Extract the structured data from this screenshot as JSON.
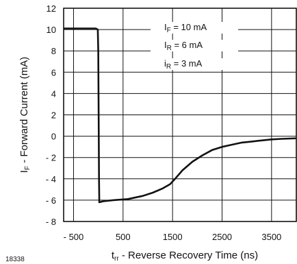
{
  "figure_id": "18338",
  "chart_data": {
    "type": "line",
    "xlabel": {
      "main": "t",
      "sub": "rr",
      "rest": " - Reverse Recovery Time (ns)"
    },
    "ylabel": {
      "main": "I",
      "sub": "F",
      "rest": " - Forward Current (mA)"
    },
    "xlim": [
      -700,
      4000
    ],
    "ylim": [
      -8,
      12
    ],
    "xticks": [
      -500,
      500,
      1500,
      2500,
      3500
    ],
    "xtick_labels": [
      "- 500",
      "500",
      "1500",
      "2500",
      "3500"
    ],
    "yticks": [
      12,
      10,
      8,
      6,
      4,
      2,
      0,
      -2,
      -4,
      -6,
      -8
    ],
    "ytick_labels": [
      "12",
      "10",
      "8",
      "6",
      "4",
      "2",
      "0",
      "- 2",
      "- 4",
      "- 6",
      "- 8"
    ],
    "grid": true,
    "legend": [
      {
        "main": "I",
        "sub": "F",
        "rest": " = 10 mA"
      },
      {
        "main": "I",
        "sub": "R",
        "rest": " =   6 mA"
      },
      {
        "main": "i",
        "sub": "R",
        "rest": " =   3 mA"
      }
    ],
    "series": [
      {
        "color": "#111111",
        "x": [
          -700,
          -50,
          -10,
          0,
          15,
          20,
          100,
          300,
          600,
          900,
          1100,
          1300,
          1450,
          1550,
          1700,
          1900,
          2100,
          2300,
          2500,
          2700,
          2900,
          3100,
          3300,
          3500,
          3700,
          4000
        ],
        "y": [
          10.1,
          10.1,
          10.0,
          8.0,
          -4.0,
          -6.2,
          -6.1,
          -6.0,
          -5.9,
          -5.6,
          -5.3,
          -4.9,
          -4.5,
          -4.0,
          -3.2,
          -2.4,
          -1.8,
          -1.3,
          -1.0,
          -0.8,
          -0.6,
          -0.5,
          -0.4,
          -0.3,
          -0.25,
          -0.2
        ]
      }
    ]
  }
}
